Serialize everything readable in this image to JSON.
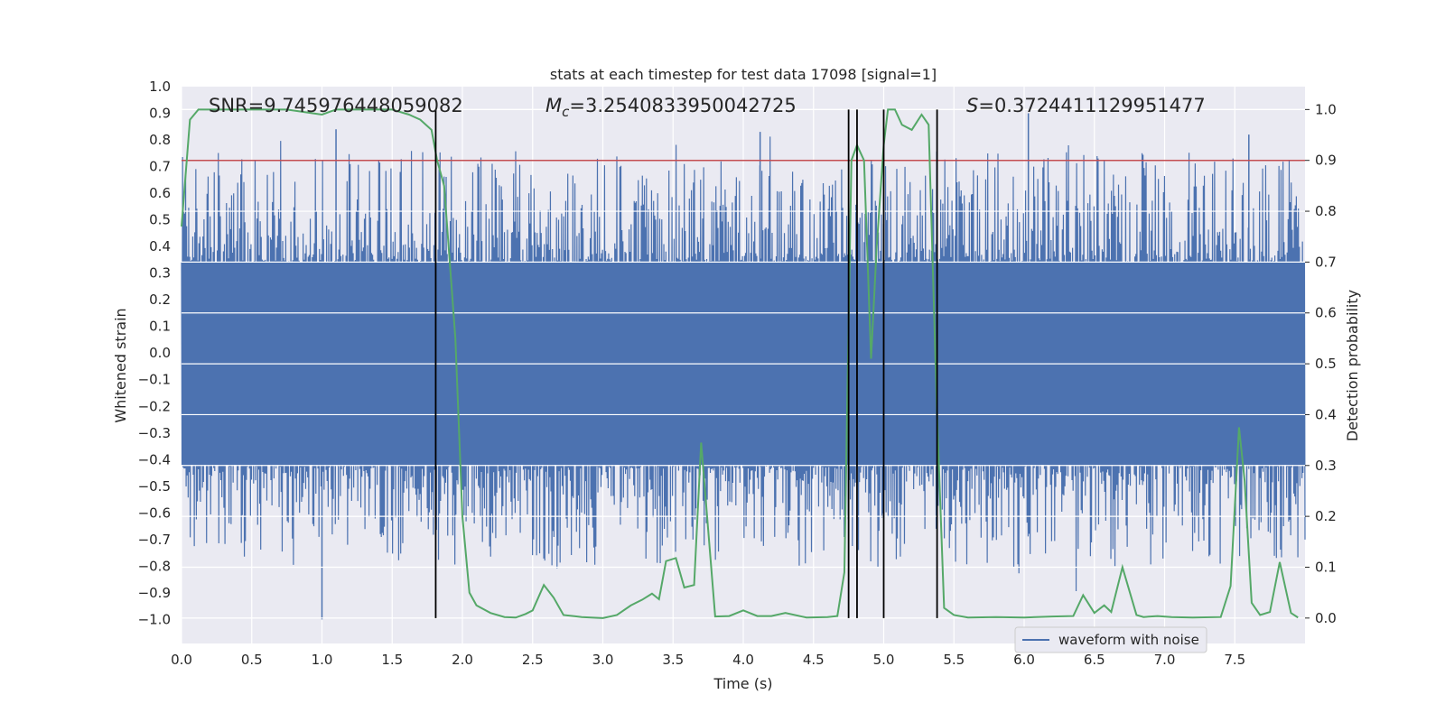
{
  "chart_data": {
    "type": "line",
    "title": "stats at each timestep for test data 17098 [signal=1]",
    "xlabel": "Time (s)",
    "ylabel": "Whitened strain",
    "y2label": "Detection probability",
    "xlim": [
      0.0,
      8.0
    ],
    "ylim": [
      -1.09,
      1.0
    ],
    "y2lim": [
      -0.05,
      1.045
    ],
    "x_ticks": [
      "0.0",
      "0.5",
      "1.0",
      "1.5",
      "2.0",
      "2.5",
      "3.0",
      "3.5",
      "4.0",
      "4.5",
      "5.0",
      "5.5",
      "6.0",
      "6.5",
      "7.0",
      "7.5"
    ],
    "y_ticks": [
      "1.0",
      "0.9",
      "0.8",
      "0.7",
      "0.6",
      "0.5",
      "0.4",
      "0.3",
      "0.2",
      "0.1",
      "0.0",
      "−0.1",
      "−0.2",
      "−0.3",
      "−0.4",
      "−0.5",
      "−0.6",
      "−0.7",
      "−0.8",
      "−0.9",
      "−1.0"
    ],
    "y2_ticks": [
      "1.0",
      "0.9",
      "0.8",
      "0.7",
      "0.6",
      "0.5",
      "0.4",
      "0.3",
      "0.2",
      "0.1",
      "0.0"
    ],
    "annotations": {
      "snr": "SNR=9.745976448059082",
      "mc_symbol": "M",
      "mc_sub": "c",
      "mc_value": "=3.2540833950042725",
      "s_symbol": "S",
      "s_value": "=0.3724411129951477"
    },
    "threshold": {
      "value": 0.9,
      "axis": "y2",
      "color": "#c44e52"
    },
    "vertical_lines": [
      1.81,
      4.75,
      4.81,
      5.0,
      5.38
    ],
    "legend": {
      "label": "waveform with noise",
      "location": "lower-right"
    },
    "series": [
      {
        "name": "waveform with noise",
        "axis": "y",
        "color": "#4c72b0",
        "kind": "noise-band",
        "core_range": [
          -0.42,
          0.34
        ],
        "peak_range": [
          -1.0,
          0.9
        ],
        "notable_peaks": [
          {
            "x": 1.0,
            "y": -1.0
          },
          {
            "x": 1.1,
            "y": 0.84
          },
          {
            "x": 6.03,
            "y": 0.9
          },
          {
            "x": 7.6,
            "y": 0.82
          },
          {
            "x": 4.12,
            "y": 0.83
          }
        ]
      },
      {
        "name": "Detection probability",
        "axis": "y2",
        "color": "#55a868",
        "x": [
          0.0,
          0.06,
          0.12,
          0.25,
          0.5,
          0.75,
          1.0,
          1.1,
          1.25,
          1.5,
          1.62,
          1.7,
          1.78,
          1.82,
          1.87,
          1.95,
          2.0,
          2.05,
          2.1,
          2.2,
          2.3,
          2.38,
          2.45,
          2.5,
          2.58,
          2.65,
          2.72,
          2.85,
          3.0,
          3.1,
          3.2,
          3.28,
          3.35,
          3.4,
          3.45,
          3.52,
          3.58,
          3.65,
          3.7,
          3.8,
          3.9,
          4.0,
          4.1,
          4.2,
          4.3,
          4.45,
          4.6,
          4.67,
          4.72,
          4.77,
          4.81,
          4.86,
          4.91,
          4.95,
          5.0,
          5.03,
          5.08,
          5.13,
          5.2,
          5.27,
          5.32,
          5.38,
          5.43,
          5.5,
          5.6,
          5.8,
          6.0,
          6.2,
          6.35,
          6.42,
          6.5,
          6.57,
          6.62,
          6.7,
          6.8,
          6.85,
          6.95,
          7.05,
          7.2,
          7.4,
          7.47,
          7.53,
          7.57,
          7.62,
          7.68,
          7.75,
          7.82,
          7.9,
          7.95
        ],
        "values": [
          0.77,
          0.98,
          1.0,
          1.0,
          1.0,
          1.0,
          0.99,
          1.0,
          1.0,
          1.0,
          0.99,
          0.98,
          0.96,
          0.9,
          0.85,
          0.55,
          0.2,
          0.05,
          0.025,
          0.01,
          0.002,
          0.001,
          0.008,
          0.015,
          0.065,
          0.04,
          0.006,
          0.002,
          0.0,
          0.006,
          0.025,
          0.036,
          0.048,
          0.037,
          0.112,
          0.118,
          0.06,
          0.065,
          0.345,
          0.003,
          0.004,
          0.015,
          0.004,
          0.004,
          0.01,
          0.001,
          0.002,
          0.004,
          0.09,
          0.9,
          0.93,
          0.9,
          0.51,
          0.73,
          0.93,
          1.0,
          1.0,
          0.97,
          0.96,
          0.99,
          0.97,
          0.4,
          0.02,
          0.006,
          0.001,
          0.002,
          0.001,
          0.003,
          0.004,
          0.045,
          0.01,
          0.025,
          0.012,
          0.1,
          0.006,
          0.002,
          0.004,
          0.002,
          0.001,
          0.002,
          0.063,
          0.375,
          0.27,
          0.03,
          0.006,
          0.012,
          0.11,
          0.01,
          0.001
        ]
      }
    ]
  }
}
